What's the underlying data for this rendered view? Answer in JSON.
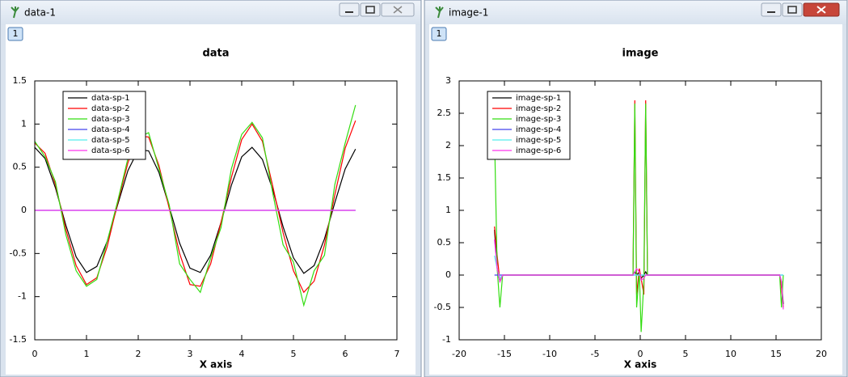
{
  "windows": [
    {
      "title": "data-1",
      "tab": "1"
    },
    {
      "title": "image-1",
      "tab": "1"
    }
  ],
  "chart_data": [
    {
      "type": "line",
      "title": "data",
      "x_label": "X axis",
      "x": [
        0,
        0.2,
        0.4,
        0.6,
        0.8,
        1.0,
        1.2,
        1.4,
        1.6,
        1.8,
        2.0,
        2.2,
        2.4,
        2.6,
        2.8,
        3.0,
        3.2,
        3.4,
        3.6,
        3.8,
        4.0,
        4.2,
        4.4,
        4.6,
        4.8,
        5.0,
        5.2,
        5.4,
        5.6,
        5.8,
        6.0,
        6.2
      ],
      "series": [
        {
          "name": "data-sp-1",
          "color": "#000000",
          "values": [
            0.73,
            0.6,
            0.26,
            -0.17,
            -0.54,
            -0.72,
            -0.65,
            -0.36,
            0.06,
            0.46,
            0.7,
            0.69,
            0.44,
            0.04,
            -0.38,
            -0.67,
            -0.72,
            -0.52,
            -0.14,
            0.29,
            0.62,
            0.73,
            0.59,
            0.24,
            -0.19,
            -0.55,
            -0.73,
            -0.64,
            -0.33,
            0.09,
            0.48,
            0.71
          ]
        },
        {
          "name": "data-sp-2",
          "color": "#ff0000",
          "values": [
            0.78,
            0.66,
            0.3,
            -0.22,
            -0.64,
            -0.86,
            -0.78,
            -0.42,
            0.08,
            0.55,
            0.86,
            0.85,
            0.52,
            0.02,
            -0.5,
            -0.86,
            -0.88,
            -0.62,
            -0.14,
            0.38,
            0.82,
            1.0,
            0.8,
            0.28,
            -0.26,
            -0.7,
            -0.95,
            -0.82,
            -0.4,
            0.18,
            0.72,
            1.04
          ]
        },
        {
          "name": "data-sp-3",
          "color": "#33dd11",
          "values": [
            0.8,
            0.62,
            0.33,
            -0.28,
            -0.7,
            -0.88,
            -0.8,
            -0.36,
            0.1,
            0.6,
            0.84,
            0.9,
            0.48,
            0.06,
            -0.62,
            -0.8,
            -0.95,
            -0.55,
            -0.2,
            0.48,
            0.88,
            1.02,
            0.84,
            0.2,
            -0.4,
            -0.6,
            -1.1,
            -0.7,
            -0.52,
            0.3,
            0.78,
            1.22
          ]
        },
        {
          "name": "data-sp-4",
          "color": "#4444ee",
          "values": [
            0,
            0,
            0,
            0,
            0,
            0,
            0,
            0,
            0,
            0,
            0,
            0,
            0,
            0,
            0,
            0,
            0,
            0,
            0,
            0,
            0,
            0,
            0,
            0,
            0,
            0,
            0,
            0,
            0,
            0,
            0,
            0
          ]
        },
        {
          "name": "data-sp-5",
          "color": "#55eeee",
          "values": [
            0,
            0,
            0,
            0,
            0,
            0,
            0,
            0,
            0,
            0,
            0,
            0,
            0,
            0,
            0,
            0,
            0,
            0,
            0,
            0,
            0,
            0,
            0,
            0,
            0,
            0,
            0,
            0,
            0,
            0,
            0,
            0
          ]
        },
        {
          "name": "data-sp-6",
          "color": "#ff33ee",
          "values": [
            0,
            0,
            0,
            0,
            0,
            0,
            0,
            0,
            0,
            0,
            0,
            0,
            0,
            0,
            0,
            0,
            0,
            0,
            0,
            0,
            0,
            0,
            0,
            0,
            0,
            0,
            0,
            0,
            0,
            0,
            0,
            0
          ]
        }
      ],
      "xlim": [
        0,
        7
      ],
      "xticks": [
        0,
        1,
        2,
        3,
        4,
        5,
        6,
        7
      ],
      "ylim": [
        -1.5,
        1.5
      ],
      "yticks": [
        -1.5,
        -1,
        -0.5,
        0,
        0.5,
        1,
        1.5
      ],
      "legend": "upper left",
      "grid": false
    },
    {
      "type": "line",
      "title": "image",
      "x_label": "X axis",
      "x": [
        -16.1,
        -15.8,
        -15.5,
        -15.2,
        -14,
        -0.8,
        -0.6,
        -0.4,
        -0.1,
        0.1,
        0.4,
        0.6,
        0.8,
        14,
        15.4,
        15.6,
        15.8
      ],
      "series": [
        {
          "name": "image-sp-1",
          "color": "#000000",
          "values": [
            0.7,
            0.1,
            -0.1,
            0,
            0,
            0,
            0.05,
            0,
            0.05,
            -0.05,
            0,
            0.05,
            0,
            0,
            0,
            -0.1,
            -0.45
          ]
        },
        {
          "name": "image-sp-2",
          "color": "#ff0000",
          "values": [
            0.75,
            0.3,
            -0.1,
            0,
            0,
            0,
            2.7,
            -0.3,
            0.1,
            -0.05,
            -0.3,
            2.7,
            0,
            0,
            0,
            -0.2,
            -0.5
          ]
        },
        {
          "name": "image-sp-3",
          "color": "#33dd11",
          "values": [
            2.2,
            0.1,
            -0.5,
            0,
            0,
            0,
            2.65,
            -0.5,
            0.05,
            -0.88,
            -0.1,
            2.65,
            0,
            0,
            0,
            -0.5,
            0.0
          ]
        },
        {
          "name": "image-sp-4",
          "color": "#4444ee",
          "values": [
            0,
            0,
            0,
            0,
            0,
            0,
            0,
            0,
            0,
            0,
            0,
            0,
            0,
            0,
            0,
            0,
            0
          ]
        },
        {
          "name": "image-sp-5",
          "color": "#55eeee",
          "values": [
            0.3,
            0.1,
            -0.05,
            0,
            0,
            0,
            0,
            0,
            0,
            0,
            0,
            0,
            0,
            0,
            0,
            0,
            0
          ]
        },
        {
          "name": "image-sp-6",
          "color": "#ff33ee",
          "values": [
            0.55,
            0.1,
            -0.1,
            0,
            0,
            0,
            0.05,
            0.1,
            0.05,
            -0.08,
            -0.05,
            0,
            0,
            0,
            0,
            -0.1,
            -0.53
          ]
        }
      ],
      "xlim": [
        -20,
        20
      ],
      "xticks": [
        -20,
        -15,
        -10,
        -5,
        0,
        5,
        10,
        15,
        20
      ],
      "ylim": [
        -1,
        3
      ],
      "yticks": [
        -1,
        -0.5,
        0,
        0.5,
        1,
        1.5,
        2,
        2.5,
        3
      ],
      "legend": "upper left",
      "grid": false
    }
  ]
}
